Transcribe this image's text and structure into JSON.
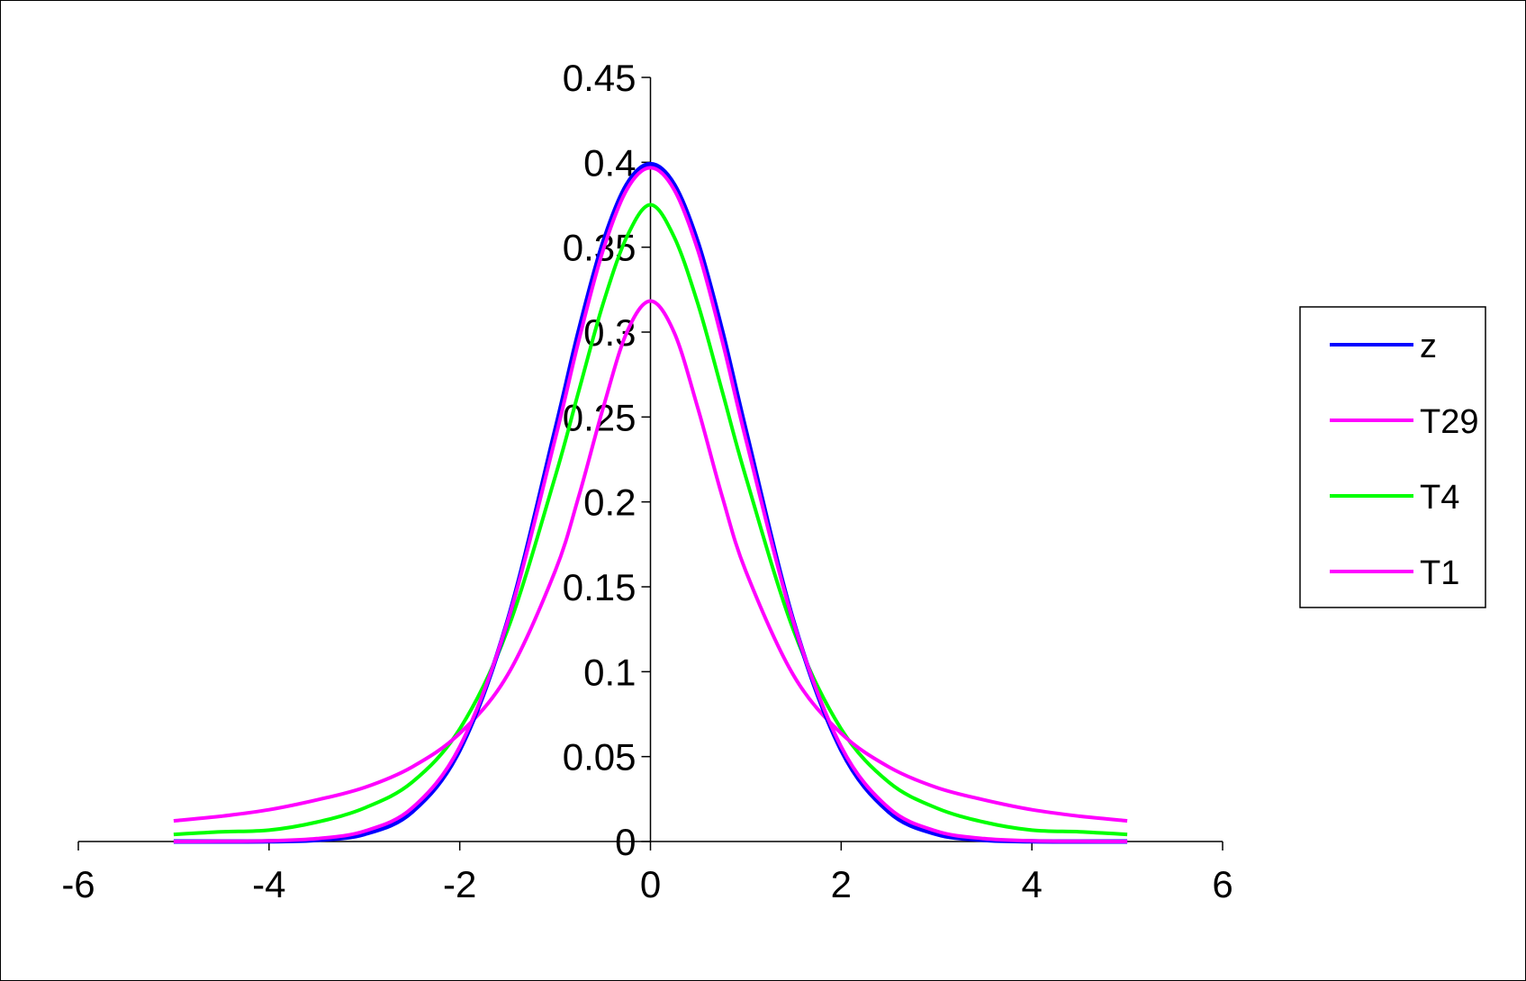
{
  "chart_data": {
    "type": "line",
    "title": "",
    "xlabel": "",
    "ylabel": "",
    "xlim": [
      -6,
      6
    ],
    "ylim": [
      0,
      0.45
    ],
    "x_ticks": [
      -6,
      -4,
      -2,
      0,
      2,
      4,
      6
    ],
    "x_tick_labels": [
      "-6",
      "-4",
      "-2",
      "0",
      "2",
      "4",
      "6"
    ],
    "y_ticks": [
      0,
      0.05,
      0.1,
      0.15,
      0.2,
      0.25,
      0.3,
      0.35,
      0.4,
      0.45
    ],
    "y_tick_labels": [
      "0",
      "0.05",
      "0.1",
      "0.15",
      "0.2",
      "0.25",
      "0.3",
      "0.35",
      "0.4",
      "0.45"
    ],
    "grid": false,
    "legend_position": "right",
    "x": [
      -5,
      -4.5,
      -4,
      -3.5,
      -3,
      -2.5,
      -2,
      -1.5,
      -1,
      -0.75,
      -0.5,
      -0.25,
      0,
      0.25,
      0.5,
      0.75,
      1,
      1.5,
      2,
      2.5,
      3,
      3.5,
      4,
      4.5,
      5
    ],
    "series": [
      {
        "name": "z",
        "color": "#0000ff",
        "values": [
          0.0,
          0.0,
          0.0001,
          0.0009,
          0.0044,
          0.0175,
          0.054,
          0.1295,
          0.242,
          0.3011,
          0.3521,
          0.3867,
          0.3989,
          0.3867,
          0.3521,
          0.3011,
          0.242,
          0.1295,
          0.054,
          0.0175,
          0.0044,
          0.0009,
          0.0001,
          0.0,
          0.0
        ]
      },
      {
        "name": "T29",
        "color": "#ff00ff",
        "values": [
          0.0,
          0.0001,
          0.0004,
          0.0017,
          0.0061,
          0.0197,
          0.0559,
          0.1291,
          0.237,
          0.2955,
          0.3476,
          0.3837,
          0.3968,
          0.3837,
          0.3476,
          0.2955,
          0.237,
          0.1291,
          0.0559,
          0.0197,
          0.0061,
          0.0017,
          0.0004,
          0.0001,
          0.0
        ]
      },
      {
        "name": "T4",
        "color": "#00ff00",
        "values": [
          0.0042,
          0.0057,
          0.0067,
          0.0114,
          0.0197,
          0.0349,
          0.0663,
          0.1244,
          0.2147,
          0.2657,
          0.3161,
          0.3558,
          0.375,
          0.3558,
          0.3161,
          0.2657,
          0.2147,
          0.1244,
          0.0663,
          0.0349,
          0.0197,
          0.0114,
          0.0067,
          0.0057,
          0.0042
        ]
      },
      {
        "name": "T1",
        "color": "#ff00ff",
        "values": [
          0.0122,
          0.0149,
          0.0187,
          0.0245,
          0.0318,
          0.0439,
          0.0637,
          0.0979,
          0.1592,
          0.2037,
          0.2546,
          0.2996,
          0.3183,
          0.2996,
          0.2546,
          0.2037,
          0.1592,
          0.0979,
          0.0637,
          0.0439,
          0.0318,
          0.0245,
          0.0187,
          0.0149,
          0.0122
        ]
      }
    ]
  }
}
